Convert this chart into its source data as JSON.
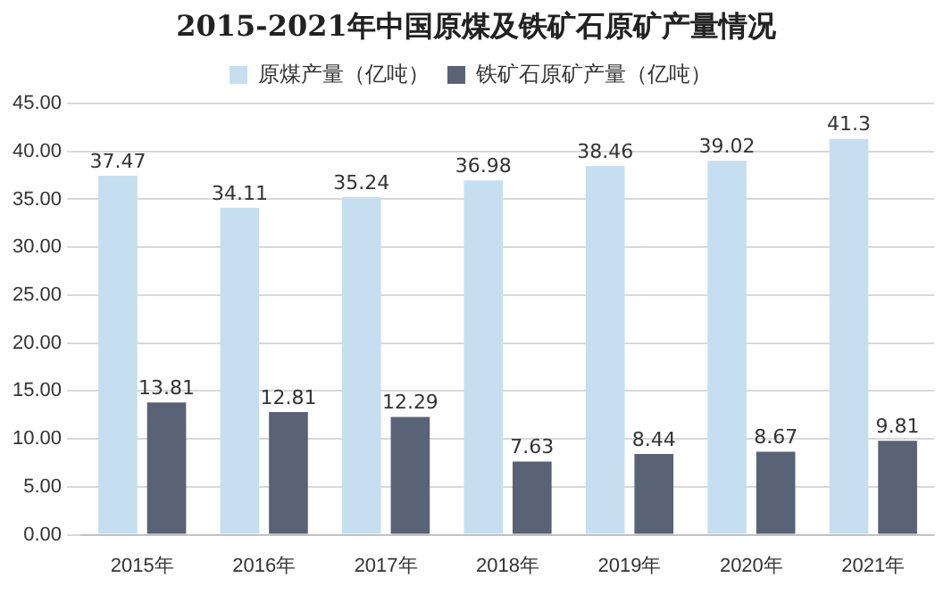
{
  "chart_data": {
    "type": "bar",
    "title": "2015-2021年中国原煤及铁矿石原矿产量情况",
    "categories": [
      "2015年",
      "2016年",
      "2017年",
      "2018年",
      "2019年",
      "2020年",
      "2021年"
    ],
    "series": [
      {
        "name": "原煤产量（亿吨）",
        "color": "#c6dff0",
        "values": [
          37.47,
          34.11,
          35.24,
          36.98,
          38.46,
          39.02,
          41.3
        ]
      },
      {
        "name": "铁矿石原矿产量（亿吨）",
        "color": "#5a6275",
        "values": [
          13.81,
          12.81,
          12.29,
          7.63,
          8.44,
          8.67,
          9.81
        ]
      }
    ],
    "ylim": [
      0,
      45
    ],
    "yticks": [
      {
        "value": 0,
        "label": "0.00"
      },
      {
        "value": 5,
        "label": "5.00"
      },
      {
        "value": 10,
        "label": "10.00"
      },
      {
        "value": 15,
        "label": "15.00"
      },
      {
        "value": 20,
        "label": "20.00"
      },
      {
        "value": 25,
        "label": "25.00"
      },
      {
        "value": 30,
        "label": "30.00"
      },
      {
        "value": 35,
        "label": "35.00"
      },
      {
        "value": 40,
        "label": "40.00"
      },
      {
        "value": 45,
        "label": "45.00"
      }
    ],
    "grid": "y",
    "legend": "top",
    "data_labels": true
  }
}
